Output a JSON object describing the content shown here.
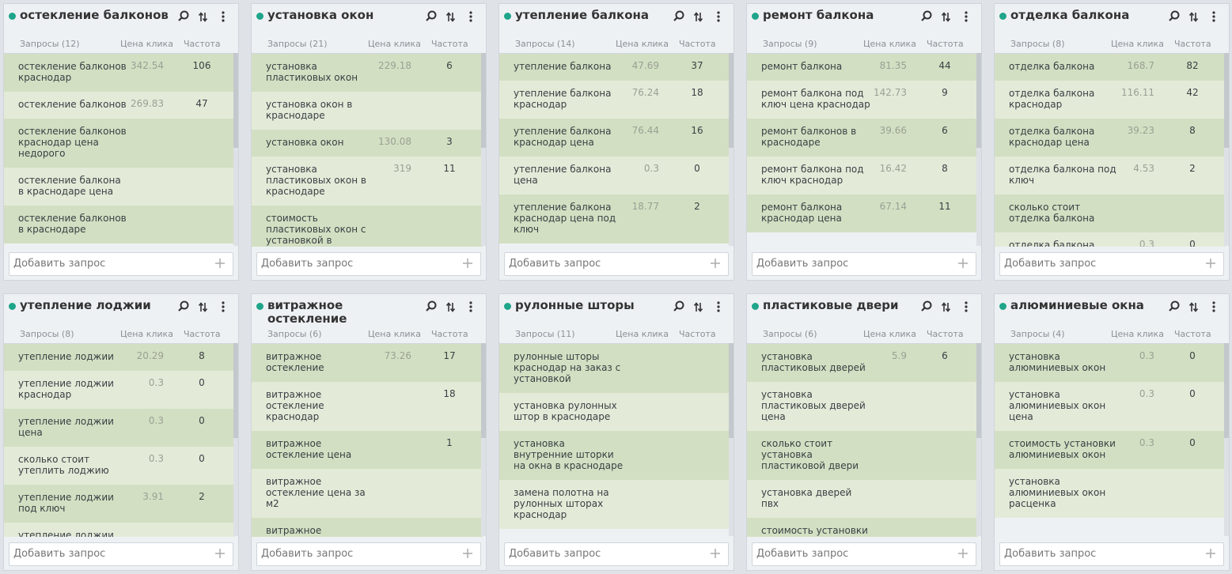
{
  "cards": [
    {
      "title": "остекление балконов",
      "columns": [
        "Запросы (12)",
        "Цена клика",
        "Частота"
      ],
      "rows": [
        {
          "query": "остекление балконов краснодар",
          "price": "342.54",
          "freq": "106"
        },
        {
          "query": "остекление балконов",
          "price": "269.83",
          "freq": "47"
        },
        {
          "query": "остекление балконов краснодар цена недорого"
        },
        {
          "query": "остекление балкона в краснодаре цена"
        },
        {
          "query": "остекление балконов в краснодаре"
        }
      ],
      "add": "Добавить запрос"
    },
    {
      "title": "установка окон",
      "columns": [
        "Запросы (21)",
        "Цена клика",
        "Частота"
      ],
      "rows": [
        {
          "query": "установка пластиковых окон",
          "price": "229.18",
          "freq": "6"
        },
        {
          "query": "установка окон в краснодаре"
        },
        {
          "query": "установка окон",
          "price": "130.08",
          "freq": "3"
        },
        {
          "query": "установка пластиковых окон в краснодаре",
          "price": "319",
          "freq": "11"
        },
        {
          "query": "стоимость пластиковых окон с установкой в краснодаре"
        }
      ],
      "add": "Добавить запрос"
    },
    {
      "title": "утепление балкона",
      "columns": [
        "Запросы (14)",
        "Цена клика",
        "Частота"
      ],
      "rows": [
        {
          "query": "утепление балкона",
          "price": "47.69",
          "freq": "37"
        },
        {
          "query": "утепление балкона краснодар",
          "price": "76.24",
          "freq": "18"
        },
        {
          "query": "утепление балкона краснодар цена",
          "price": "76.44",
          "freq": "16"
        },
        {
          "query": "утепление балкона цена",
          "price": "0.3",
          "freq": "0"
        },
        {
          "query": "утепление балкона краснодар цена под ключ",
          "price": "18.77",
          "freq": "2"
        }
      ],
      "add": "Добавить запрос"
    },
    {
      "title": "ремонт балкона",
      "columns": [
        "Запросы (9)",
        "Цена клика",
        "Частота"
      ],
      "rows": [
        {
          "query": "ремонт балкона",
          "price": "81.35",
          "freq": "44"
        },
        {
          "query": "ремонт балкона под ключ цена краснодар",
          "price": "142.73",
          "freq": "9"
        },
        {
          "query": "ремонт балконов в краснодаре",
          "price": "39.66",
          "freq": "6"
        },
        {
          "query": "ремонт балкона под ключ краснодар",
          "price": "16.42",
          "freq": "8"
        },
        {
          "query": "ремонт балкона краснодар цена",
          "price": "67.14",
          "freq": "11"
        }
      ],
      "add": "Добавить запрос"
    },
    {
      "title": "отделка балкона",
      "columns": [
        "Запросы (8)",
        "Цена клика",
        "Частота"
      ],
      "rows": [
        {
          "query": "отделка балкона",
          "price": "168.7",
          "freq": "82"
        },
        {
          "query": "отделка балкона краснодар",
          "price": "116.11",
          "freq": "42"
        },
        {
          "query": "отделка балкона краснодар цена",
          "price": "39.23",
          "freq": "8"
        },
        {
          "query": "отделка балкона под ключ",
          "price": "4.53",
          "freq": "2"
        },
        {
          "query": "сколько стоит отделка балкона"
        },
        {
          "query": "отделка балкона",
          "price": "0.3",
          "freq": "0"
        }
      ],
      "add": "Добавить запрос"
    },
    {
      "title": "утепление лоджии",
      "columns": [
        "Запросы (8)",
        "Цена клика",
        "Частота"
      ],
      "rows": [
        {
          "query": "утепление лоджии",
          "price": "20.29",
          "freq": "8"
        },
        {
          "query": "утепление лоджии краснодар",
          "price": "0.3",
          "freq": "0"
        },
        {
          "query": "утепление лоджии цена",
          "price": "0.3",
          "freq": "0"
        },
        {
          "query": "сколько стоит утеплить лоджию",
          "price": "0.3",
          "freq": "0"
        },
        {
          "query": "утепление лоджии под ключ",
          "price": "3.91",
          "freq": "2"
        },
        {
          "query": "утепление лоджии"
        }
      ],
      "add": "Добавить запрос"
    },
    {
      "title": "витражное остекление",
      "columns": [
        "Запросы (6)",
        "Цена клика",
        "Частота"
      ],
      "rows": [
        {
          "query": "витражное остекление",
          "price": "73.26",
          "freq": "17"
        },
        {
          "query": "витражное остекление краснодар",
          "freq": "18"
        },
        {
          "query": "витражное остекление цена",
          "freq": "1"
        },
        {
          "query": "витражное остекление цена за м2"
        },
        {
          "query": "витражное остекление"
        }
      ],
      "add": "Добавить запрос"
    },
    {
      "title": "рулонные шторы",
      "columns": [
        "Запросы (11)",
        "Цена клика",
        "Частота"
      ],
      "rows": [
        {
          "query": "рулонные шторы краснодар на заказ с установкой"
        },
        {
          "query": "установка рулонных штор в краснодаре"
        },
        {
          "query": "установка внутренние шторки на окна в краснодаре"
        },
        {
          "query": "замена полотна на рулонных шторах краснодар"
        }
      ],
      "add": "Добавить запрос"
    },
    {
      "title": "пластиковые двери",
      "columns": [
        "Запросы (6)",
        "Цена клика",
        "Частота"
      ],
      "rows": [
        {
          "query": "установка пластиковых дверей",
          "price": "5.9",
          "freq": "6"
        },
        {
          "query": "установка пластиковых дверей цена"
        },
        {
          "query": "сколько стоит установка пластиковой двери"
        },
        {
          "query": "установка дверей пвх"
        },
        {
          "query": "стоимость установки пластиковой двери"
        }
      ],
      "add": "Добавить запрос"
    },
    {
      "title": "алюминиевые окна",
      "columns": [
        "Запросы (4)",
        "Цена клика",
        "Частота"
      ],
      "rows": [
        {
          "query": "установка алюминиевых окон",
          "price": "0.3",
          "freq": "0"
        },
        {
          "query": "установка алюминиевых окон цена",
          "price": "0.3",
          "freq": "0"
        },
        {
          "query": "стоимость установки алюминиевых окон",
          "price": "0.3",
          "freq": "0"
        },
        {
          "query": "установка алюминиевых окон расценка"
        }
      ],
      "add": "Добавить запрос"
    }
  ]
}
